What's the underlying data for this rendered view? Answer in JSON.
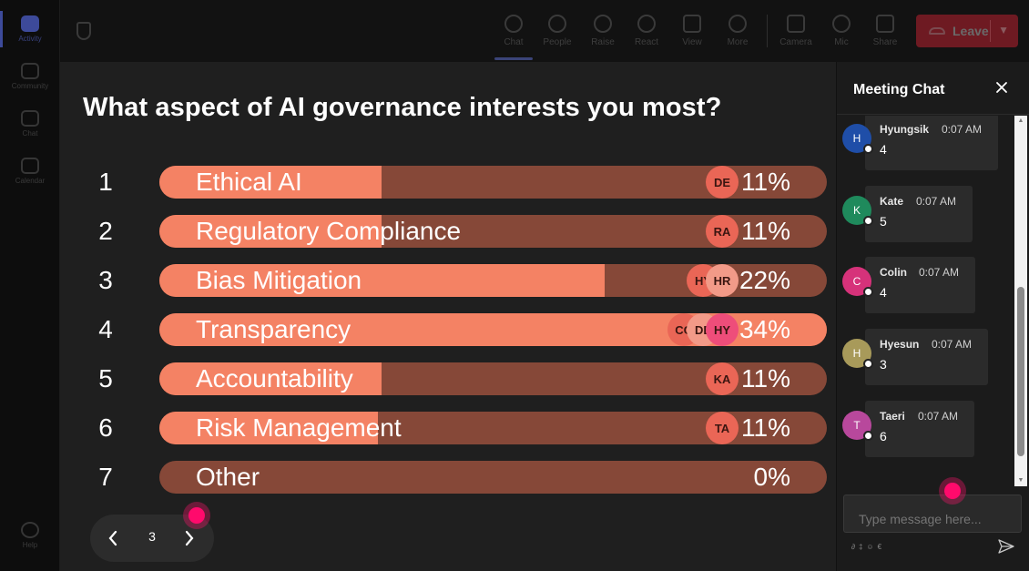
{
  "rail": {
    "items": [
      {
        "label": "Activity",
        "active": true
      },
      {
        "label": "Community",
        "active": false
      },
      {
        "label": "Chat",
        "active": false
      },
      {
        "label": "Calendar",
        "active": false
      }
    ],
    "help": "Help"
  },
  "toolbar": {
    "buttons": [
      {
        "label": "Chat",
        "icon": "chat-icon"
      },
      {
        "label": "People",
        "icon": "people-icon"
      },
      {
        "label": "Raise",
        "icon": "raise-hand-icon"
      },
      {
        "label": "React",
        "icon": "react-icon"
      },
      {
        "label": "View",
        "icon": "view-icon"
      },
      {
        "label": "More",
        "icon": "more-icon"
      },
      {
        "label": "Camera",
        "icon": "camera-icon"
      },
      {
        "label": "Mic",
        "icon": "mic-icon"
      },
      {
        "label": "Share",
        "icon": "share-icon"
      }
    ],
    "leave": "Leave"
  },
  "poll": {
    "question": "What aspect of AI governance interests you most?",
    "options": [
      {
        "num": "1",
        "label": "Ethical AI",
        "percent": 11,
        "percent_text": "11%",
        "voters": [
          "DE"
        ]
      },
      {
        "num": "2",
        "label": "Regulatory Compliance",
        "percent": 11,
        "percent_text": "11%",
        "voters": [
          "RA"
        ]
      },
      {
        "num": "3",
        "label": "Bias Mitigation",
        "percent": 22,
        "percent_text": "22%",
        "voters": [
          "HY",
          "HR"
        ]
      },
      {
        "num": "4",
        "label": "Transparency",
        "percent": 34,
        "percent_text": "34%",
        "voters": [
          "CO",
          "DE",
          "HY"
        ]
      },
      {
        "num": "5",
        "label": "Accountability",
        "percent": 11,
        "percent_text": "11%",
        "voters": [
          "KA"
        ]
      },
      {
        "num": "6",
        "label": "Risk Management",
        "percent": 11,
        "percent_text": "11%",
        "voters": [
          "TA"
        ]
      },
      {
        "num": "7",
        "label": "Other",
        "percent": 0,
        "percent_text": "0%",
        "voters": []
      }
    ]
  },
  "pager": {
    "page": "3"
  },
  "chat": {
    "title": "Meeting Chat",
    "messages": [
      {
        "initial": "H",
        "name": "Hyungsik",
        "time": "0:07 AM",
        "text": "4",
        "color": "#1f4ea8"
      },
      {
        "initial": "K",
        "name": "Kate",
        "time": "0:07 AM",
        "text": "5",
        "color": "#1f8a5c"
      },
      {
        "initial": "C",
        "name": "Colin",
        "time": "0:07 AM",
        "text": "4",
        "color": "#d6327a"
      },
      {
        "initial": "H",
        "name": "Hyesun",
        "time": "0:07 AM",
        "text": "3",
        "color": "#a89a5a"
      },
      {
        "initial": "T",
        "name": "Taeri",
        "time": "0:07 AM",
        "text": "6",
        "color": "#b8489c"
      }
    ],
    "compose_placeholder": "Type message here..."
  }
}
